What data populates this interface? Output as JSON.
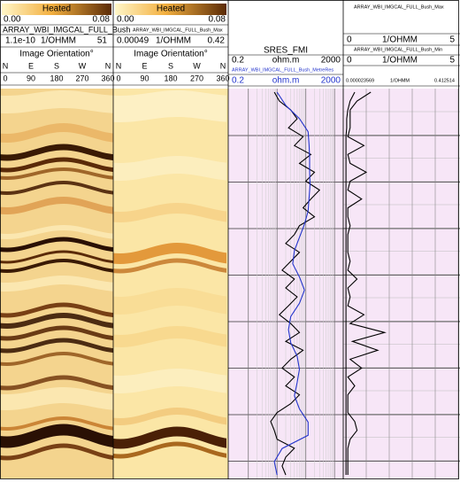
{
  "image_tracks": [
    {
      "scale_title": "Heated",
      "scale_min": "0.00",
      "scale_max": "0.08",
      "curve": "ARRAY_WBI_IMGCAL_FULL_Bush",
      "range_min": "1.1e-10",
      "range_unit": "1/OHMM",
      "range_max": "51",
      "orientation": "Image Orientation°",
      "directions": [
        "N",
        "E",
        "S",
        "W",
        "N"
      ],
      "degrees": [
        "0",
        "90",
        "180",
        "270",
        "360"
      ]
    },
    {
      "scale_title": "Heated",
      "scale_min": "0.00",
      "scale_max": "0.08",
      "curve": "ARRAY_WBI_IMGCAL_FULL_Bush_Max",
      "range_min": "0.00049",
      "range_unit": "1/OHMM",
      "range_max": "0.42",
      "orientation": "Image Orientation°",
      "directions": [
        "N",
        "E",
        "S",
        "W",
        "N"
      ],
      "degrees": [
        "0",
        "90",
        "180",
        "270",
        "360"
      ]
    }
  ],
  "resistivity_track": {
    "title": "SRES_FMI",
    "log_scale": true,
    "curves": [
      {
        "scale": [
          0.2,
          "ohm.m",
          2000
        ],
        "color": "#000000",
        "values": [
          8,
          12,
          30,
          50,
          25,
          80,
          40,
          150,
          60,
          200,
          100,
          300,
          150,
          80,
          200,
          60,
          40,
          20,
          60,
          30,
          15,
          40,
          20,
          50,
          25,
          12,
          30,
          60,
          20,
          80,
          30,
          15,
          40,
          20,
          60,
          30,
          10,
          6,
          8,
          10,
          40,
          20,
          15,
          20
        ]
      },
      {
        "curve": "ARRAY_WBI_IMGCAL_FULL_Bush_MetreRes",
        "scale": [
          0.2,
          "ohm.m",
          2000
        ],
        "color": "#2233cc",
        "values": [
          10,
          20,
          60,
          120,
          130,
          135,
          135,
          140,
          130,
          120,
          90,
          60,
          40,
          35,
          60,
          90,
          60,
          30,
          25,
          30,
          50,
          60,
          50,
          40,
          60,
          120,
          120,
          15,
          8,
          10
        ]
      }
    ]
  },
  "conductivity_track": {
    "curves": [
      {
        "curve": "ARRAY_WBI_IMGCAL_FULL_Bush_Max",
        "scale": [
          0,
          "1/OHMM",
          5
        ],
        "color": "#000000",
        "values": [
          1.2,
          0.6,
          0.3,
          0.3,
          0.3,
          0.2,
          0.9,
          0.2,
          0.3,
          1.0,
          0.3,
          0.2,
          0.8,
          0.2,
          0.2,
          0.3,
          0.2,
          0.2,
          0.2,
          0.3,
          0.2,
          0.6,
          0.2,
          0.3,
          0.2,
          0.9,
          0.3,
          1.8,
          0.4,
          1.5,
          0.3,
          0.8,
          0.2,
          0.5,
          0.2,
          0.2,
          0.2,
          0.5,
          0.6,
          0.3,
          0.2,
          0.2,
          0.2,
          0.2
        ]
      },
      {
        "curve": "ARRAY_WBI_IMGCAL_FULL_Bush_Min",
        "scale": [
          0,
          "1/OHMM",
          5
        ],
        "color": "#000000",
        "values": [
          0.5,
          0.3,
          0.2,
          0.15,
          0.15,
          0.12,
          0.12,
          0.12,
          0.12,
          0.12,
          0.12,
          0.12,
          0.12,
          0.12,
          0.12,
          0.12,
          0.12,
          0.12,
          0.12,
          0.12,
          0.12,
          0.12,
          0.12,
          0.12,
          0.12,
          0.12,
          0.12,
          0.12,
          0.12,
          0.12,
          0.12,
          0.12,
          0.12,
          0.12,
          0.12,
          0.12,
          0.12,
          0.12,
          0.12,
          0.12,
          0.12,
          0.12,
          0.12,
          0.12
        ]
      }
    ],
    "extra_scale": [
      "0.000023569",
      "1/OHMM",
      "0.412514"
    ]
  }
}
